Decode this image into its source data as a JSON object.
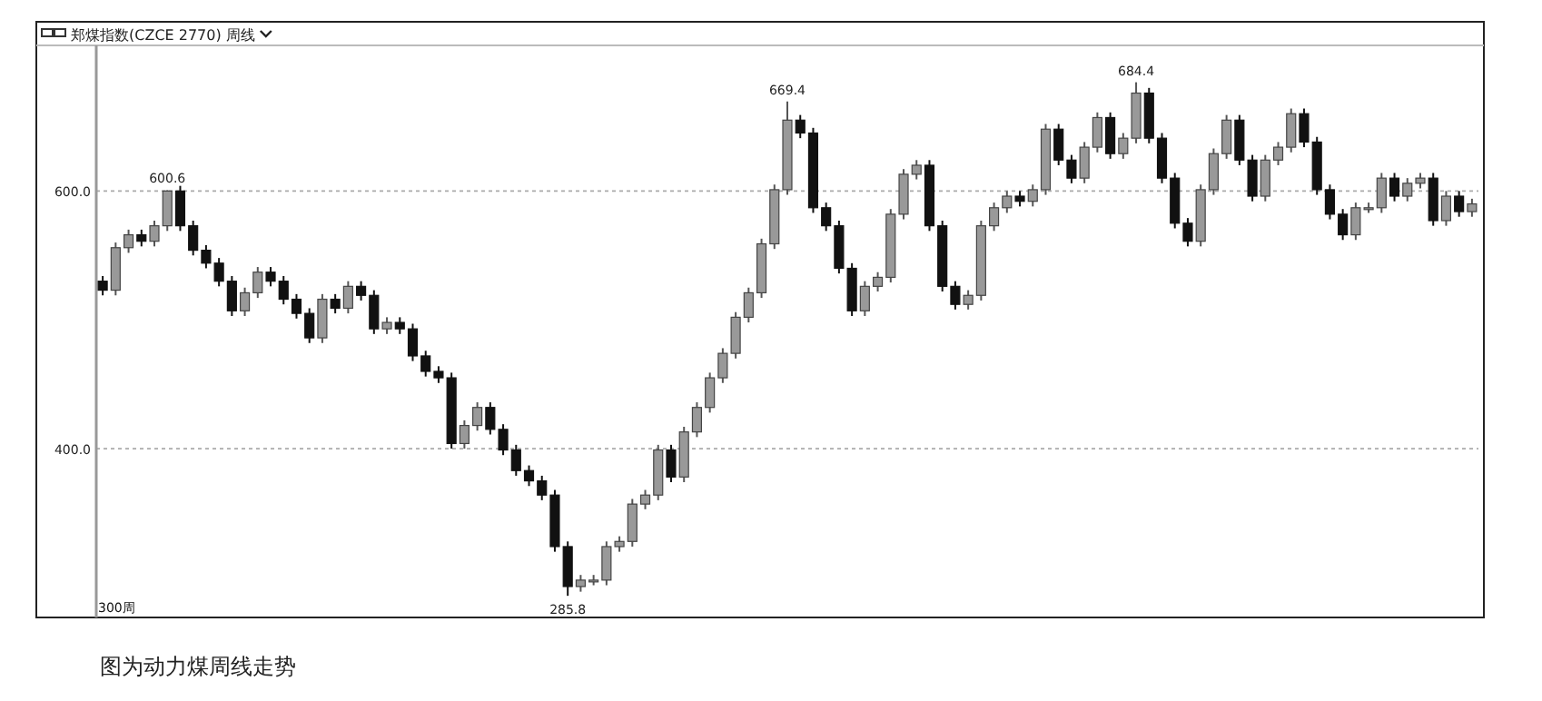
{
  "chart_data": {
    "type": "candlestick",
    "title": "郑煤指数(CZCE 2770) 周线",
    "annotations": [
      {
        "text": "600.6",
        "y": 600.6
      },
      {
        "text": "669.4",
        "y": 669.4
      },
      {
        "text": "684.4",
        "y": 684.4
      },
      {
        "text": "285.8",
        "y": 285.8
      },
      "300周",
      "图为动力煤周线走势"
    ],
    "ylim": [
      269,
      713
    ],
    "yticks": [
      {
        "value": 400,
        "label": "400.0"
      },
      {
        "value": 600,
        "label": "600.0"
      }
    ],
    "grid": "y",
    "tick_labels": "y",
    "categories": [
      null,
      null,
      null,
      null,
      null,
      null,
      null,
      null,
      null,
      null,
      null,
      null,
      null,
      null,
      null,
      null,
      null,
      null,
      null,
      null,
      null,
      null,
      null,
      null,
      null,
      null,
      null,
      null,
      null,
      null,
      null,
      null,
      null,
      null,
      null,
      null,
      null,
      null,
      null,
      null,
      null,
      null,
      null,
      null,
      null,
      null,
      null,
      null,
      null,
      null,
      null,
      null,
      null,
      null,
      null,
      null,
      null,
      null,
      null,
      null,
      null,
      null,
      null,
      null,
      null,
      null,
      null,
      null,
      null,
      null,
      null,
      null,
      null,
      null,
      null,
      null,
      null,
      null,
      null,
      null,
      null,
      null,
      null,
      null,
      null,
      null,
      null,
      null,
      null,
      null,
      null,
      null,
      null,
      null,
      null,
      null,
      null,
      null,
      null,
      null,
      null,
      null,
      null,
      null,
      null,
      null,
      null
    ],
    "ohlc": [
      [
        530,
        534,
        519,
        523
      ],
      [
        523,
        560,
        519,
        556
      ],
      [
        556,
        570,
        552,
        566
      ],
      [
        566,
        570,
        557,
        561
      ],
      [
        561,
        577,
        557,
        573
      ],
      [
        573,
        600.6,
        569,
        600
      ],
      [
        600,
        604,
        569,
        573
      ],
      [
        573,
        577,
        550,
        554
      ],
      [
        554,
        558,
        540,
        544
      ],
      [
        544,
        548,
        526,
        530
      ],
      [
        530,
        534,
        503,
        507
      ],
      [
        507,
        525,
        503,
        521
      ],
      [
        521,
        541,
        517,
        537
      ],
      [
        537,
        541,
        526,
        530
      ],
      [
        530,
        534,
        512,
        516
      ],
      [
        516,
        520,
        501,
        505
      ],
      [
        505,
        509,
        482,
        486
      ],
      [
        486,
        520,
        482,
        516
      ],
      [
        516,
        520,
        505,
        509
      ],
      [
        509,
        530,
        505,
        526
      ],
      [
        526,
        530,
        515,
        519
      ],
      [
        519,
        523,
        489,
        493
      ],
      [
        493,
        502,
        489,
        498
      ],
      [
        498,
        502,
        489,
        493
      ],
      [
        493,
        497,
        468,
        472
      ],
      [
        472,
        476,
        456,
        460
      ],
      [
        460,
        464,
        451,
        455
      ],
      [
        455,
        459,
        400,
        404
      ],
      [
        404,
        422,
        400,
        418
      ],
      [
        418,
        436,
        414,
        432
      ],
      [
        432,
        436,
        411,
        415
      ],
      [
        415,
        419,
        395,
        399
      ],
      [
        399,
        403,
        379,
        383
      ],
      [
        383,
        387,
        371,
        375
      ],
      [
        375,
        379,
        360,
        364
      ],
      [
        364,
        368,
        320,
        324
      ],
      [
        324,
        328,
        285.8,
        293
      ],
      [
        293,
        302,
        289,
        298
      ],
      [
        298,
        302,
        294,
        298
      ],
      [
        298,
        328,
        294,
        324
      ],
      [
        324,
        332,
        320,
        328
      ],
      [
        328,
        361,
        324,
        357
      ],
      [
        357,
        368,
        353,
        364
      ],
      [
        364,
        403,
        360,
        399
      ],
      [
        399,
        403,
        374,
        378
      ],
      [
        378,
        417,
        374,
        413
      ],
      [
        413,
        436,
        409,
        432
      ],
      [
        432,
        459,
        428,
        455
      ],
      [
        455,
        478,
        451,
        474
      ],
      [
        474,
        506,
        470,
        502
      ],
      [
        502,
        525,
        498,
        521
      ],
      [
        521,
        563,
        517,
        559
      ],
      [
        559,
        605,
        555,
        601
      ],
      [
        601,
        669.4,
        597,
        655
      ],
      [
        655,
        659,
        641,
        645
      ],
      [
        645,
        649,
        583,
        587
      ],
      [
        587,
        591,
        569,
        573
      ],
      [
        573,
        577,
        536,
        540
      ],
      [
        540,
        544,
        503,
        507
      ],
      [
        507,
        530,
        503,
        526
      ],
      [
        526,
        537,
        522,
        533
      ],
      [
        533,
        586,
        529,
        582
      ],
      [
        582,
        617,
        578,
        613
      ],
      [
        613,
        624,
        609,
        620
      ],
      [
        620,
        624,
        569,
        573
      ],
      [
        573,
        577,
        522,
        526
      ],
      [
        526,
        530,
        508,
        512
      ],
      [
        512,
        523,
        508,
        519
      ],
      [
        519,
        577,
        515,
        573
      ],
      [
        573,
        591,
        569,
        587
      ],
      [
        587,
        600,
        583,
        596
      ],
      [
        596,
        600,
        588,
        592
      ],
      [
        592,
        605,
        588,
        601
      ],
      [
        601,
        652,
        597,
        648
      ],
      [
        648,
        652,
        620,
        624
      ],
      [
        624,
        628,
        606,
        610
      ],
      [
        610,
        638,
        606,
        634
      ],
      [
        634,
        661,
        630,
        657
      ],
      [
        657,
        661,
        625,
        629
      ],
      [
        629,
        645,
        625,
        641
      ],
      [
        641,
        684.4,
        637,
        676
      ],
      [
        676,
        680,
        637,
        641
      ],
      [
        641,
        645,
        606,
        610
      ],
      [
        610,
        614,
        571,
        575
      ],
      [
        575,
        579,
        557,
        561
      ],
      [
        561,
        605,
        557,
        601
      ],
      [
        601,
        633,
        597,
        629
      ],
      [
        629,
        659,
        625,
        655
      ],
      [
        655,
        659,
        620,
        624
      ],
      [
        624,
        628,
        592,
        596
      ],
      [
        596,
        628,
        592,
        624
      ],
      [
        624,
        638,
        620,
        634
      ],
      [
        634,
        664,
        630,
        660
      ],
      [
        660,
        664,
        634,
        638
      ],
      [
        638,
        642,
        597,
        601
      ],
      [
        601,
        605,
        578,
        582
      ],
      [
        582,
        586,
        562,
        566
      ],
      [
        566,
        591,
        562,
        587
      ],
      [
        587,
        591,
        583,
        587
      ],
      [
        587,
        614,
        583,
        610
      ],
      [
        610,
        614,
        592,
        596
      ],
      [
        596,
        610,
        592,
        606
      ],
      [
        606,
        614,
        602,
        610
      ],
      [
        610,
        614,
        573,
        577
      ],
      [
        577,
        600,
        573,
        596
      ],
      [
        596,
        600,
        580,
        584
      ],
      [
        584,
        594,
        580,
        590
      ]
    ]
  }
}
